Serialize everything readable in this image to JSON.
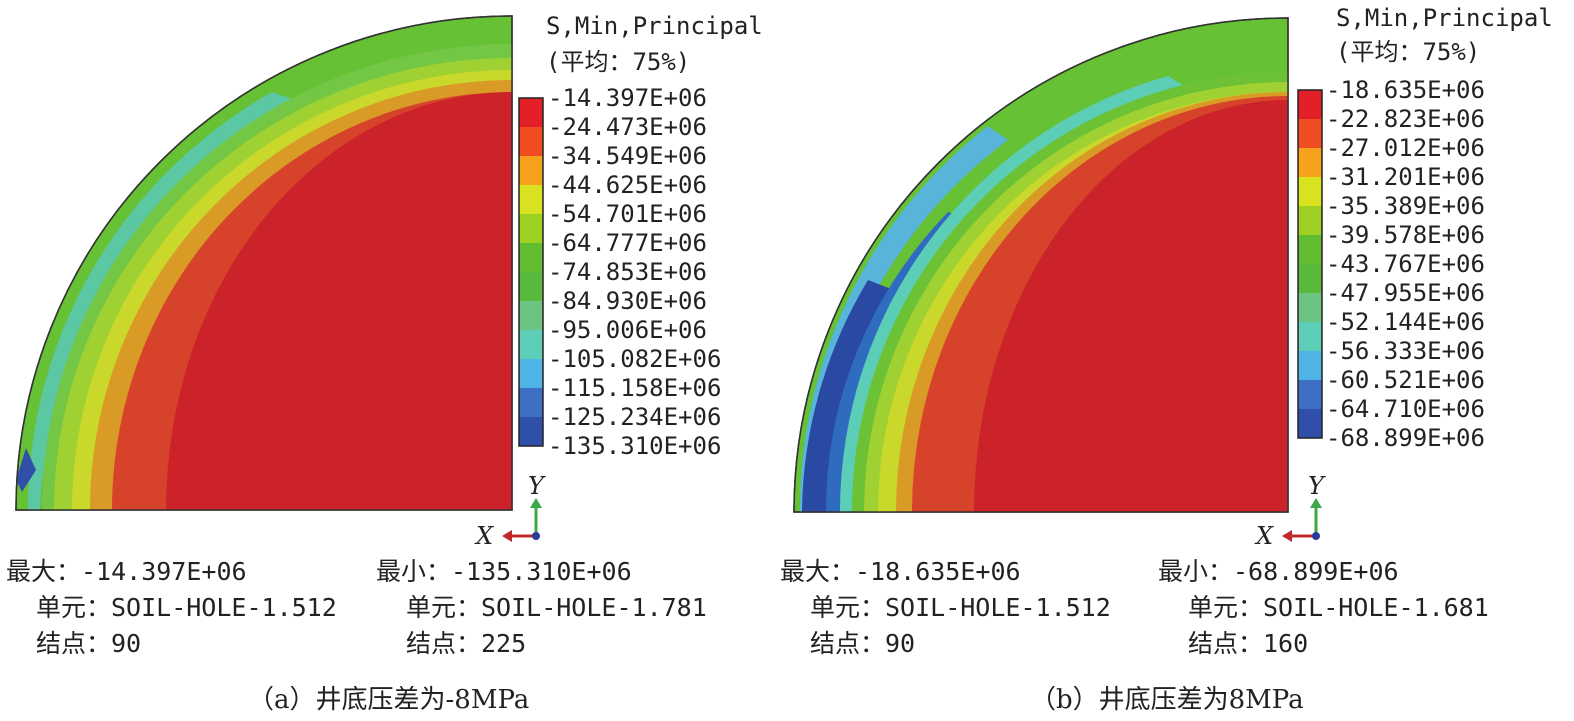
{
  "panels": [
    {
      "legend_title": "S,Min,Principal",
      "legend_sub": "(平均：75%)",
      "levels": [
        "-14.397E+06",
        "-24.473E+06",
        "-34.549E+06",
        "-44.625E+06",
        "-54.701E+06",
        "-64.777E+06",
        "-74.853E+06",
        "-84.930E+06",
        "-95.006E+06",
        "-105.082E+06",
        "-115.158E+06",
        "-125.234E+06",
        "-135.310E+06"
      ],
      "axis_y": "Y",
      "axis_x": "X",
      "max_line": "最大：-14.397E+06",
      "min_line": "最小：-135.310E+06",
      "max_elem": "单元：SOIL-HOLE-1.512",
      "min_elem": "单元：SOIL-HOLE-1.781",
      "max_node": "结点：90",
      "min_node": "结点：225",
      "caption": "（a）井底压差为-8MPa"
    },
    {
      "legend_title": "S,Min,Principal",
      "legend_sub": "(平均：75%)",
      "levels": [
        "-18.635E+06",
        "-22.823E+06",
        "-27.012E+06",
        "-31.201E+06",
        "-35.389E+06",
        "-39.578E+06",
        "-43.767E+06",
        "-47.955E+06",
        "-52.144E+06",
        "-56.333E+06",
        "-60.521E+06",
        "-64.710E+06",
        "-68.899E+06"
      ],
      "axis_y": "Y",
      "axis_x": "X",
      "max_line": "最大：-18.635E+06",
      "min_line": "最小：-68.899E+06",
      "max_elem": "单元：SOIL-HOLE-1.512",
      "min_elem": "单元：SOIL-HOLE-1.681",
      "max_node": "结点：90",
      "min_node": "结点：160",
      "caption": "（b）井底压差为8MPa"
    }
  ],
  "colors": {
    "bands": [
      "#e32027",
      "#f04d23",
      "#f7a21c",
      "#d8e21f",
      "#9ed023",
      "#62be30",
      "#58b93c",
      "#6cc483",
      "#5ccdb6",
      "#4fb3e6",
      "#3d6fc4",
      "#2f4fa8"
    ],
    "deep_red": "#cc2229",
    "red2": "#d8432a",
    "orange": "#d99a26",
    "yellow": "#c9d62a",
    "green": "#6cc234",
    "teal": "#58c2a5",
    "blue": "#2f6bbf",
    "navy": "#2a49a3"
  }
}
